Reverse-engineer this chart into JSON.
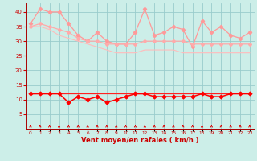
{
  "x": [
    0,
    1,
    2,
    3,
    4,
    5,
    6,
    7,
    8,
    9,
    10,
    11,
    12,
    13,
    14,
    15,
    16,
    17,
    18,
    19,
    20,
    21,
    22,
    23
  ],
  "rafales": [
    36,
    41,
    40,
    40,
    36,
    32,
    30,
    33,
    30,
    29,
    29,
    33,
    41,
    32,
    33,
    35,
    34,
    28,
    37,
    33,
    35,
    32,
    31,
    33
  ],
  "moy_upper": [
    35,
    36,
    35,
    34,
    33,
    31,
    30,
    30,
    29,
    29,
    29,
    29,
    30,
    30,
    30,
    30,
    30,
    29,
    29,
    29,
    29,
    29,
    29,
    29
  ],
  "moy_trend": [
    35,
    35,
    34,
    32,
    31,
    30,
    29,
    28,
    27,
    26,
    26,
    26,
    27,
    27,
    27,
    27,
    26,
    26,
    26,
    26,
    26,
    26,
    26,
    26
  ],
  "wind_mean": [
    12,
    12,
    12,
    12,
    9,
    11,
    10,
    11,
    9,
    10,
    11,
    12,
    12,
    11,
    11,
    11,
    11,
    11,
    12,
    11,
    11,
    12,
    12,
    12
  ],
  "wind_flat": [
    12,
    12,
    12,
    12,
    12,
    12,
    12,
    12,
    12,
    12,
    12,
    12,
    12,
    12,
    12,
    12,
    12,
    12,
    12,
    12,
    12,
    12,
    12,
    12
  ],
  "bg_color": "#cceee8",
  "grid_color": "#99cccc",
  "line_color_rafales": "#ff9999",
  "line_color_moy_upper": "#ffaaaa",
  "line_color_moy_trend": "#ffbbbb",
  "line_color_wind_bright": "#ff0000",
  "line_color_wind_flat": "#ff2222",
  "xlabel": "Vent moyen/en rafales ( km/h )",
  "ylim": [
    0,
    43
  ],
  "yticks": [
    5,
    10,
    15,
    20,
    25,
    30,
    35,
    40
  ],
  "arrow_color": "#dd0000"
}
